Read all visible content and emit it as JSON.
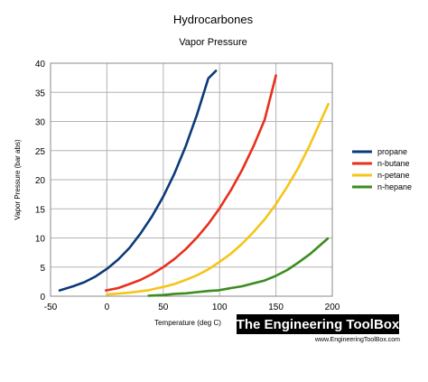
{
  "chart_data": {
    "type": "line",
    "title": "Hydrocarbones",
    "subtitle": "Vapor Pressure",
    "xlabel": "Temperature (deg C)",
    "ylabel": "Vapor  Pressure  (bar  abs)",
    "xlim": [
      -50,
      200
    ],
    "ylim": [
      0,
      40
    ],
    "x_ticks": [
      "-50",
      "0",
      "50",
      "100",
      "150",
      "200"
    ],
    "y_ticks": [
      "0",
      "5",
      "10",
      "15",
      "20",
      "25",
      "30",
      "35",
      "40"
    ],
    "grid": true,
    "legend_position": "right",
    "series": [
      {
        "name": "propane",
        "color": "#0b3a7a",
        "x": [
          -42,
          -30,
          -20,
          -10,
          0,
          10,
          20,
          30,
          40,
          50,
          60,
          70,
          80,
          90,
          96.7
        ],
        "y": [
          1.0,
          1.7,
          2.4,
          3.4,
          4.7,
          6.3,
          8.3,
          10.8,
          13.7,
          17.1,
          21.1,
          25.8,
          31.2,
          37.4,
          38.7
        ]
      },
      {
        "name": "n-butane",
        "color": "#e8301c",
        "x": [
          -1,
          10,
          20,
          30,
          40,
          50,
          60,
          70,
          80,
          90,
          100,
          110,
          120,
          130,
          140,
          150
        ],
        "y": [
          1.0,
          1.4,
          2.1,
          2.8,
          3.8,
          5.0,
          6.4,
          8.1,
          10.1,
          12.4,
          15.1,
          18.2,
          21.7,
          25.7,
          30.3,
          37.9
        ]
      },
      {
        "name": "n-petane",
        "color": "#f5c518",
        "x": [
          0,
          20,
          36,
          50,
          60,
          70,
          80,
          90,
          100,
          110,
          120,
          130,
          140,
          150,
          160,
          170,
          180,
          196.5
        ],
        "y": [
          0.3,
          0.6,
          1.0,
          1.6,
          2.1,
          2.8,
          3.6,
          4.6,
          5.9,
          7.3,
          9.0,
          11.0,
          13.2,
          15.8,
          18.8,
          22.1,
          25.9,
          33.0
        ]
      },
      {
        "name": "n-hepane",
        "color": "#3c8c1e",
        "x": [
          37,
          50,
          60,
          70,
          80,
          90,
          98.4,
          110,
          120,
          130,
          140,
          150,
          160,
          170,
          180,
          196
        ],
        "y": [
          0.1,
          0.2,
          0.4,
          0.5,
          0.7,
          0.9,
          1.0,
          1.4,
          1.7,
          2.2,
          2.7,
          3.5,
          4.5,
          5.8,
          7.2,
          9.9
        ]
      }
    ]
  },
  "branding": {
    "name": "The Engineering ToolBox",
    "url": "www.EngineeringToolBox.com"
  }
}
